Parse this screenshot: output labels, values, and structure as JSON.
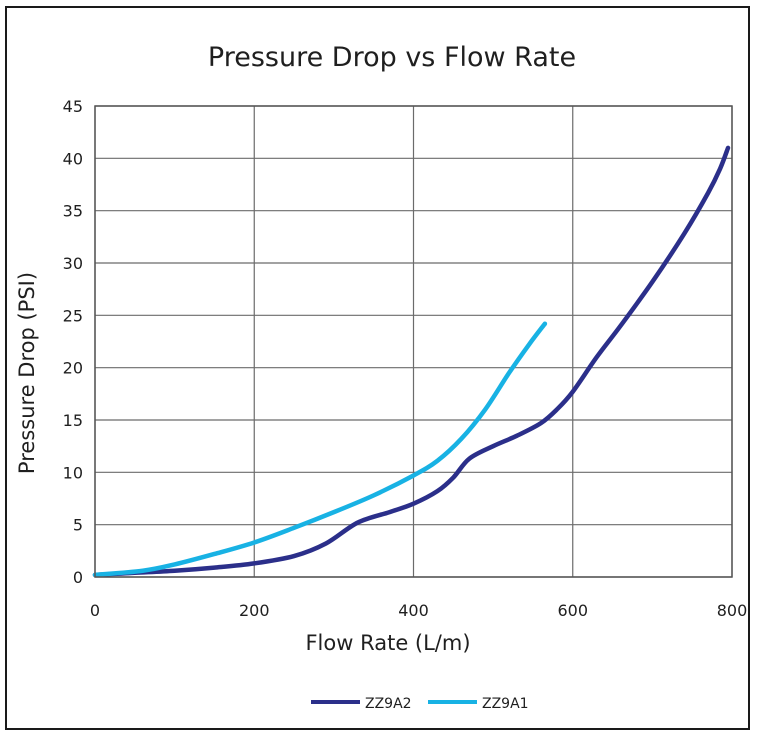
{
  "chart_data": {
    "type": "line",
    "title": "Pressure Drop vs Flow Rate",
    "xlabel": "Flow Rate (L/m)",
    "ylabel": "Pressure Drop (PSI)",
    "xlim": [
      0,
      800
    ],
    "ylim": [
      0,
      45
    ],
    "x_ticks": [
      "0",
      "200",
      "400",
      "600",
      "800"
    ],
    "y_ticks": [
      "0",
      "5",
      "10",
      "15",
      "20",
      "25",
      "30",
      "35",
      "40",
      "45"
    ],
    "grid": true,
    "legend_position": "bottom",
    "series": [
      {
        "name": "ZZ9A2",
        "color": "#2b2f8a",
        "points": [
          [
            0,
            0.2
          ],
          [
            50,
            0.4
          ],
          [
            100,
            0.6
          ],
          [
            150,
            0.9
          ],
          [
            200,
            1.3
          ],
          [
            250,
            2.0
          ],
          [
            290,
            3.2
          ],
          [
            330,
            5.2
          ],
          [
            370,
            6.2
          ],
          [
            400,
            7.0
          ],
          [
            430,
            8.2
          ],
          [
            450,
            9.5
          ],
          [
            470,
            11.3
          ],
          [
            500,
            12.5
          ],
          [
            530,
            13.5
          ],
          [
            560,
            14.7
          ],
          [
            580,
            16.0
          ],
          [
            600,
            17.7
          ],
          [
            630,
            21.0
          ],
          [
            660,
            24.0
          ],
          [
            700,
            28.2
          ],
          [
            740,
            32.8
          ],
          [
            770,
            36.7
          ],
          [
            785,
            39.0
          ],
          [
            795,
            41.0
          ]
        ]
      },
      {
        "name": "ZZ9A1",
        "color": "#18b2e4",
        "points": [
          [
            0,
            0.2
          ],
          [
            60,
            0.6
          ],
          [
            100,
            1.2
          ],
          [
            150,
            2.2
          ],
          [
            200,
            3.3
          ],
          [
            250,
            4.7
          ],
          [
            300,
            6.2
          ],
          [
            350,
            7.8
          ],
          [
            400,
            9.7
          ],
          [
            430,
            11.1
          ],
          [
            460,
            13.2
          ],
          [
            490,
            16.0
          ],
          [
            520,
            19.5
          ],
          [
            545,
            22.2
          ],
          [
            565,
            24.2
          ]
        ]
      }
    ]
  }
}
